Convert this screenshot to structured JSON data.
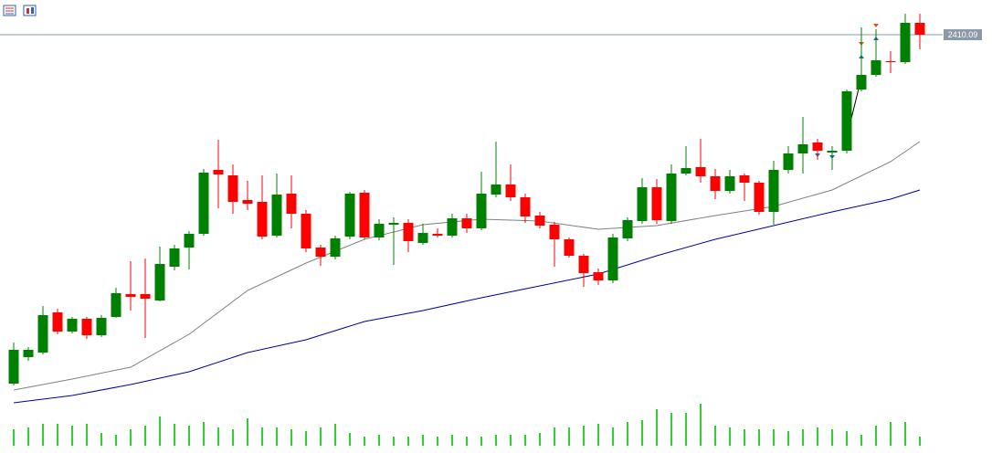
{
  "chart_data": {
    "type": "candlestick",
    "categories": [
      null,
      null,
      null,
      null,
      null,
      null,
      null,
      null,
      null,
      null,
      null,
      null,
      null,
      null,
      null,
      null,
      null,
      null,
      null,
      null,
      null,
      null,
      null,
      null,
      null,
      null,
      null,
      null,
      null,
      null,
      null,
      null,
      null,
      null,
      null,
      null,
      null,
      null,
      null,
      null,
      null,
      null,
      null,
      null,
      null,
      null,
      null,
      null,
      null,
      null,
      null,
      null,
      null,
      null,
      null,
      null,
      null,
      null,
      null,
      null,
      null,
      null,
      null
    ],
    "open": [
      2295.5,
      2304.2,
      2305.7,
      2318.9,
      2312.6,
      2316.8,
      2311.4,
      2317.4,
      2324.9,
      2324.9,
      2322.8,
      2333.9,
      2340.2,
      2344.7,
      2365.7,
      2363.9,
      2355.8,
      2355.2,
      2344.1,
      2357.9,
      2351.3,
      2340.2,
      2337.2,
      2343.8,
      2358.2,
      2343.5,
      2347.7,
      2348.3,
      2341.7,
      2344.7,
      2344.1,
      2349.8,
      2346.5,
      2357.6,
      2360.9,
      2356.7,
      2350.7,
      2347.7,
      2342.9,
      2337.5,
      2332.1,
      2329.4,
      2343.2,
      2348.9,
      2360.0,
      2348.9,
      2364.5,
      2366.6,
      2363.6,
      2358.8,
      2363.9,
      2361.5,
      2351.9,
      2365.7,
      2371.1,
      2374.7,
      2371.4,
      2372.0,
      2392.1,
      2396.9,
      2401.4,
      2401.1,
      2414.0
    ],
    "high": [
      2309.0,
      2307.5,
      2321.0,
      2320.1,
      2317.4,
      2317.4,
      2318.0,
      2327.0,
      2335.7,
      2336.6,
      2340.5,
      2341.1,
      2345.6,
      2366.0,
      2375.6,
      2367.5,
      2362.1,
      2363.9,
      2364.5,
      2363.9,
      2352.5,
      2341.1,
      2344.1,
      2358.5,
      2359.1,
      2349.5,
      2350.1,
      2349.5,
      2348.0,
      2346.5,
      2351.3,
      2351.3,
      2365.1,
      2375.0,
      2367.5,
      2357.9,
      2351.9,
      2348.6,
      2343.5,
      2338.1,
      2333.3,
      2344.7,
      2350.1,
      2363.0,
      2362.7,
      2367.5,
      2373.5,
      2375.9,
      2366.0,
      2365.7,
      2364.5,
      2362.1,
      2368.7,
      2373.5,
      2383.1,
      2375.9,
      2373.5,
      2392.1,
      2412.5,
      2411.9,
      2404.7,
      2417.0,
      2417.0
    ],
    "low": [
      2294.9,
      2303.0,
      2305.1,
      2311.7,
      2312.0,
      2310.2,
      2310.8,
      2317.1,
      2319.5,
      2310.5,
      2322.5,
      2332.7,
      2333.0,
      2344.1,
      2353.1,
      2351.3,
      2352.5,
      2342.9,
      2343.5,
      2346.5,
      2338.7,
      2334.2,
      2336.3,
      2342.9,
      2342.9,
      2342.6,
      2334.5,
      2338.7,
      2341.1,
      2343.5,
      2343.5,
      2345.0,
      2345.9,
      2356.7,
      2355.5,
      2348.3,
      2346.5,
      2333.9,
      2336.9,
      2327.3,
      2327.9,
      2328.5,
      2342.3,
      2348.0,
      2348.0,
      2348.0,
      2363.9,
      2361.5,
      2356.1,
      2357.9,
      2355.5,
      2351.0,
      2347.7,
      2364.5,
      2364.5,
      2369.0,
      2365.7,
      2371.1,
      2391.5,
      2396.3,
      2397.5,
      2400.5,
      2405.3
    ],
    "close": [
      2306.6,
      2306.6,
      2318.0,
      2312.6,
      2316.8,
      2311.4,
      2317.1,
      2325.2,
      2324.0,
      2323.4,
      2334.8,
      2339.9,
      2344.7,
      2364.8,
      2364.2,
      2355.2,
      2354.6,
      2343.8,
      2357.6,
      2351.3,
      2339.9,
      2337.2,
      2343.2,
      2357.9,
      2343.5,
      2348.0,
      2348.3,
      2342.3,
      2345.0,
      2344.1,
      2349.8,
      2346.5,
      2357.9,
      2360.9,
      2356.7,
      2350.4,
      2347.4,
      2342.9,
      2337.5,
      2331.8,
      2329.4,
      2343.5,
      2349.2,
      2360.0,
      2349.2,
      2364.5,
      2366.3,
      2363.6,
      2358.8,
      2363.6,
      2361.5,
      2351.9,
      2365.7,
      2371.1,
      2374.1,
      2372.0,
      2372.0,
      2391.5,
      2396.9,
      2401.7,
      2401.1,
      2414.0,
      2410.1
    ],
    "up_color": "#008000",
    "down_color": "#ff0000",
    "volume": [
      18,
      20,
      24,
      24,
      22,
      24,
      14,
      12,
      18,
      22,
      32,
      24,
      22,
      26,
      20,
      18,
      30,
      20,
      20,
      18,
      16,
      20,
      24,
      14,
      10,
      12,
      10,
      10,
      12,
      10,
      12,
      10,
      10,
      12,
      12,
      12,
      14,
      20,
      20,
      22,
      24,
      20,
      26,
      28,
      40,
      36,
      36,
      46,
      22,
      20,
      18,
      18,
      18,
      16,
      18,
      20,
      18,
      16,
      12,
      22,
      26,
      26,
      10
    ],
    "volume_color": "#32cd32",
    "volume_lim": [
      0,
      50
    ],
    "ylim": [
      2286.5,
      2421.5
    ],
    "lines": [
      {
        "color": "#808080",
        "x": [
          0,
          4,
          8,
          12,
          16,
          20,
          24,
          28,
          32,
          36,
          40,
          44,
          48,
          52,
          56,
          60,
          62
        ],
        "values": [
          2293.4,
          2297.0,
          2300.9,
          2311.7,
          2326.1,
          2335.1,
          2342.9,
          2347.7,
          2349.5,
          2348.9,
          2346.2,
          2347.4,
          2350.7,
          2353.7,
          2359.1,
          2368.4,
          2375.0
        ]
      },
      {
        "color": "#0000a0",
        "x": [
          0,
          4,
          8,
          12,
          16,
          20,
          24,
          28,
          32,
          36,
          40,
          44,
          48,
          52,
          56,
          60,
          62
        ],
        "values": [
          2289.2,
          2291.6,
          2295.2,
          2299.4,
          2305.7,
          2309.9,
          2315.9,
          2319.5,
          2323.7,
          2327.6,
          2331.5,
          2337.5,
          2342.9,
          2347.4,
          2351.9,
          2356.1,
          2359.1
        ]
      }
    ],
    "price_line": 2410.09
  }
}
